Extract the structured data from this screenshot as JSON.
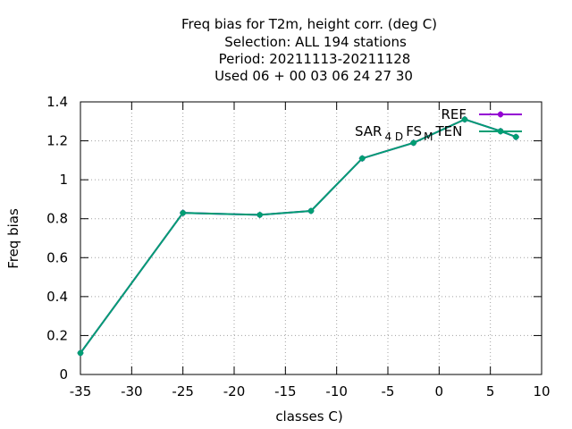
{
  "chart_data": {
    "type": "line",
    "title_lines": [
      "Freq bias  for T2m, height corr. (deg C)",
      "Selection: ALL    194 stations",
      "Period: 20211113-20211128",
      "Used  06 + 00 03 06 24 27 30"
    ],
    "xlabel": "classes C)",
    "ylabel": "Freq bias",
    "xlim": [
      -35,
      10
    ],
    "ylim": [
      0,
      1.4
    ],
    "xticks": [
      -35,
      -30,
      -25,
      -20,
      -15,
      -10,
      -5,
      0,
      5,
      10
    ],
    "yticks": [
      0,
      0.2,
      0.4,
      0.6,
      0.8,
      1,
      1.2,
      1.4
    ],
    "xtick_labels": [
      "-35",
      "-30",
      "-25",
      "-20",
      "-15",
      "-10",
      "-5",
      "0",
      "5",
      "10"
    ],
    "ytick_labels": [
      "0",
      "0.2",
      "0.4",
      "0.6",
      "0.8",
      "1",
      "1.2",
      "1.4"
    ],
    "grid": true,
    "legend_position": "top-right",
    "series": [
      {
        "name": "REF",
        "color": "#9400d3",
        "x": [
          -35,
          -25,
          -17.5,
          -12.5,
          -7.5,
          -2.5,
          2.5,
          6,
          7.5
        ],
        "y": [
          0.11,
          0.83,
          0.82,
          0.84,
          1.11,
          1.19,
          1.31,
          1.25,
          1.22
        ]
      },
      {
        "name": "SAR 4 D FS M TEN",
        "color": "#009e73",
        "x": [
          -35,
          -25,
          -17.5,
          -12.5,
          -7.5,
          -2.5,
          2.5,
          6,
          7.5
        ],
        "y": [
          0.11,
          0.83,
          0.82,
          0.84,
          1.11,
          1.19,
          1.31,
          1.25,
          1.22
        ]
      }
    ],
    "legend_labels": {
      "ref": "REF",
      "sar_main": "SAR",
      "sar_sub1": "4 D",
      "sar_mid": "FS",
      "sar_sub2": "M",
      "sar_end": "TEN"
    }
  }
}
